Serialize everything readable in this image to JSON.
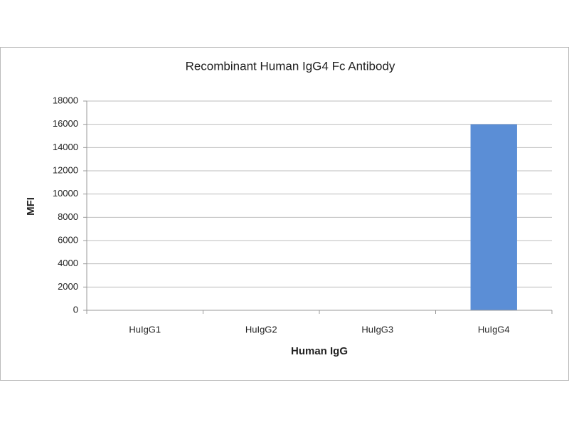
{
  "chart_data": {
    "type": "bar",
    "title": "Recombinant Human IgG4 Fc Antibody",
    "x_label": "Human IgG",
    "y_label": "MFI",
    "categories": [
      "HuIgG1",
      "HuIgG2",
      "HuIgG3",
      "HuIgG4"
    ],
    "values": [
      0,
      0,
      0,
      16000
    ],
    "color": "#5b8ed6",
    "ylim": [
      0,
      18000
    ],
    "yticks": [
      0,
      2000,
      4000,
      6000,
      8000,
      10000,
      12000,
      14000,
      16000,
      18000
    ],
    "grid": true
  }
}
